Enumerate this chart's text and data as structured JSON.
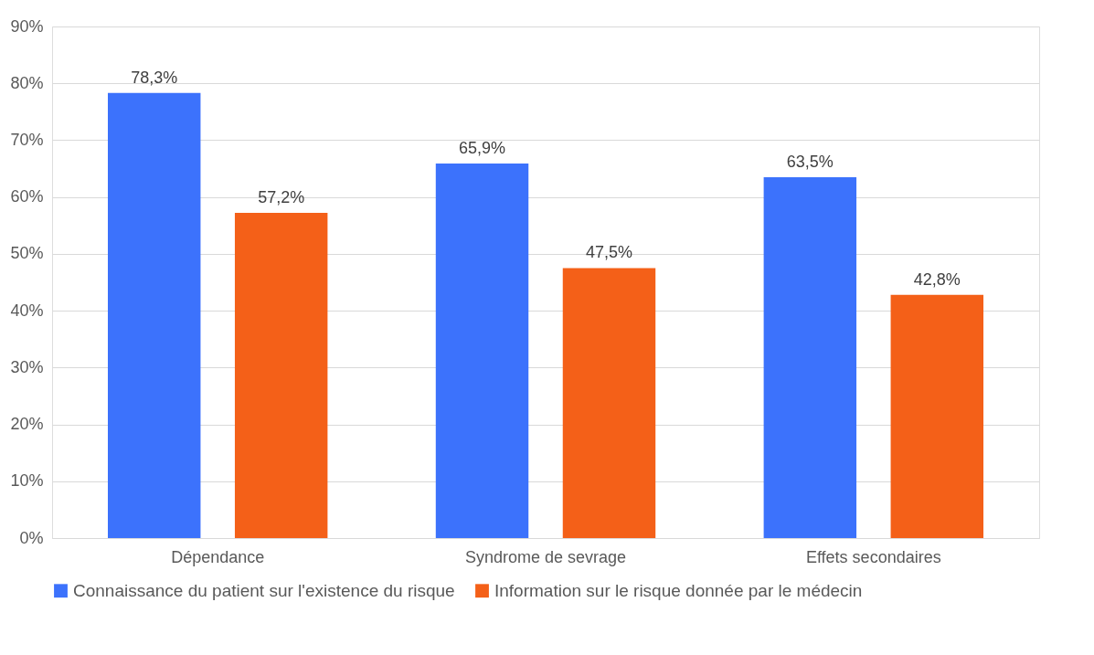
{
  "chart_data": {
    "type": "bar",
    "categories": [
      "Dépendance",
      "Syndrome de sevrage",
      "Effets secondaires"
    ],
    "series": [
      {
        "name": "Connaissance du patient sur l'existence du risque",
        "color": "#3c72fc",
        "values": [
          78.3,
          65.9,
          63.5
        ],
        "value_labels": [
          "78,3%",
          "65,9%",
          "63,5%"
        ]
      },
      {
        "name": "Information sur le risque donnée par le médecin",
        "color": "#f46018",
        "values": [
          57.2,
          47.5,
          42.8
        ],
        "value_labels": [
          "57,2%",
          "47,5%",
          "42,8%"
        ]
      }
    ],
    "ylim": [
      0,
      90
    ],
    "yticks": [
      {
        "value": 0,
        "label": "0%"
      },
      {
        "value": 10,
        "label": "10%"
      },
      {
        "value": 20,
        "label": "20%"
      },
      {
        "value": 30,
        "label": "30%"
      },
      {
        "value": 40,
        "label": "40%"
      },
      {
        "value": 50,
        "label": "50%"
      },
      {
        "value": 60,
        "label": "60%"
      },
      {
        "value": 70,
        "label": "70%"
      },
      {
        "value": 80,
        "label": "80%"
      },
      {
        "value": 90,
        "label": "90%"
      }
    ],
    "grid": "y",
    "legend": "bottom"
  }
}
